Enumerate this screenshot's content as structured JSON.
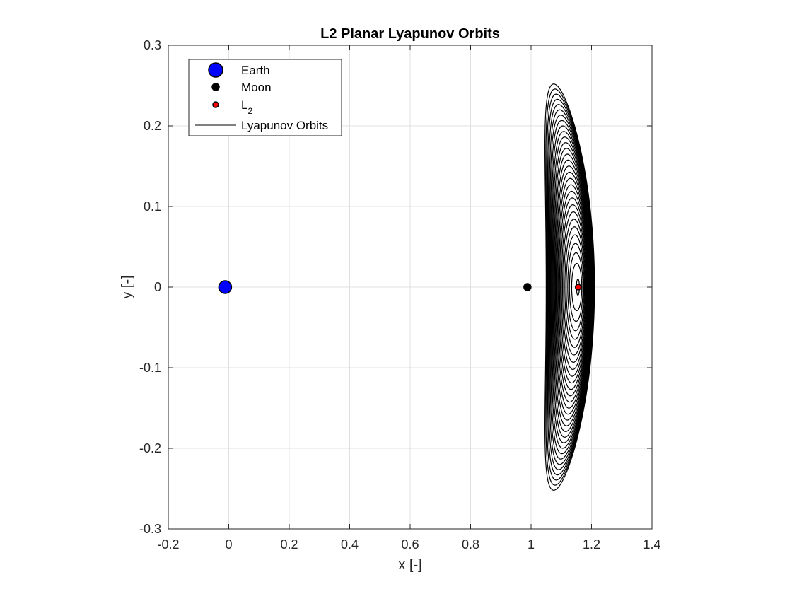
{
  "chart_data": {
    "type": "line",
    "title": "L2 Planar Lyapunov Orbits",
    "xlabel": "x [-]",
    "ylabel": "y [-]",
    "xlim": [
      -0.2,
      1.4
    ],
    "ylim": [
      -0.3,
      0.3
    ],
    "xticks": [
      "-0.2",
      "0",
      "0.2",
      "0.4",
      "0.6",
      "0.8",
      "1",
      "1.2",
      "1.4"
    ],
    "yticks": [
      "0.3",
      "0.2",
      "0.1",
      "0",
      "-0.1",
      "-0.2",
      "-0.3"
    ],
    "grid": true,
    "legend_position": "top-left",
    "legend": [
      {
        "label": "Earth",
        "marker": "circle-large",
        "color": "#0000ff"
      },
      {
        "label": "Moon",
        "marker": "circle",
        "color": "#000000"
      },
      {
        "label": "L",
        "subscript": "2",
        "marker": "circle-small",
        "color": "#ff0000"
      },
      {
        "label": "Lyapunov Orbits",
        "marker": "line",
        "color": "#000000"
      }
    ],
    "points": [
      {
        "name": "Earth",
        "x": -0.012,
        "y": 0,
        "color": "#0000ff"
      },
      {
        "name": "Moon",
        "x": 0.988,
        "y": 0,
        "color": "#000000"
      },
      {
        "name": "L2",
        "x": 1.156,
        "y": 0,
        "color": "#ff0000"
      }
    ],
    "orbit_family": {
      "center_x": 1.156,
      "count": 30,
      "largest": {
        "x_min": 1.05,
        "x_max": 1.21,
        "y_max": 0.252
      },
      "smallest": {
        "x_min": 1.15,
        "x_max": 1.16,
        "y_max": 0.01
      },
      "line_color": "#000000"
    }
  }
}
